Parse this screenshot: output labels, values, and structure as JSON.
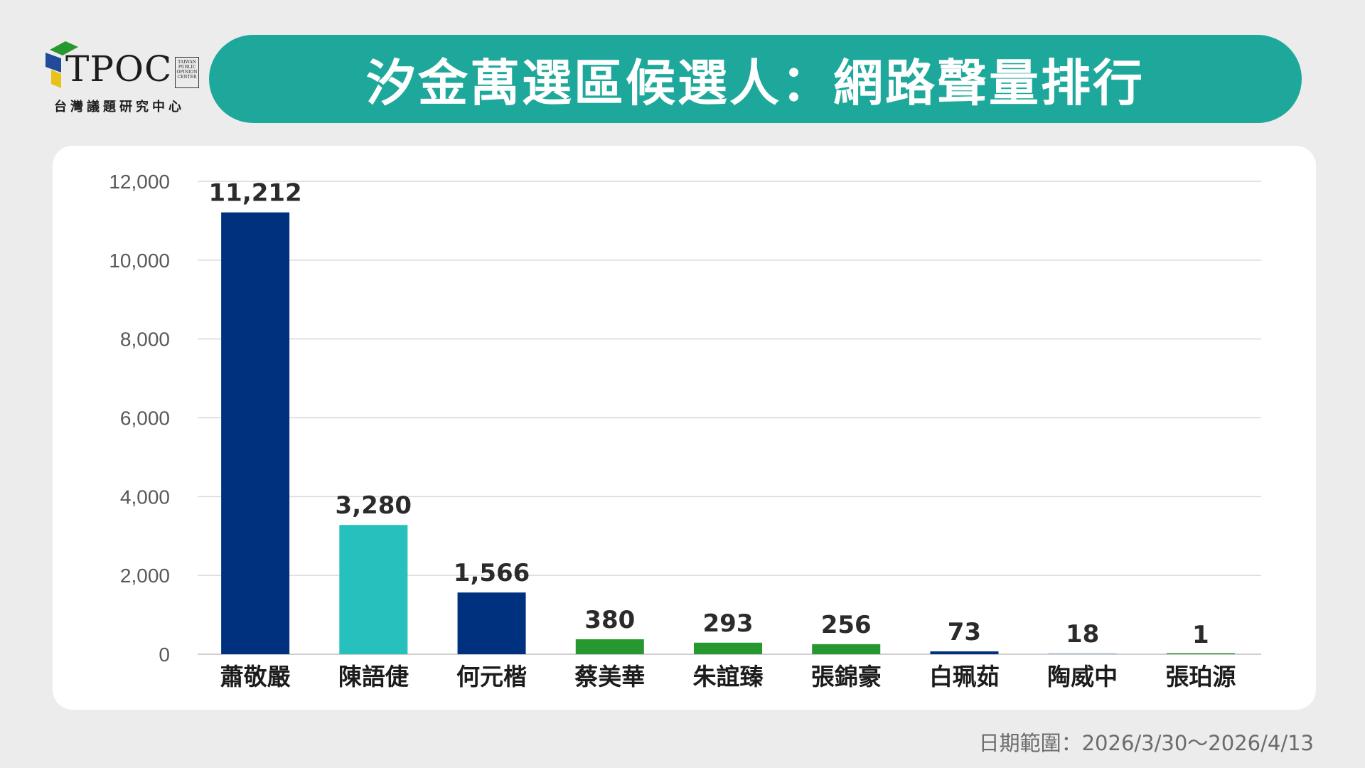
{
  "header": {
    "logo_text": "TPOC",
    "logo_badge_lines": [
      "TAIWAN",
      "PUBLIC",
      "OPINION",
      "CENTER"
    ],
    "logo_subtitle": "台灣議題研究中心",
    "title": "汐金萬選區候選人：網路聲量排行"
  },
  "footer": {
    "date_range": "日期範圍：2026/3/30～2026/4/13"
  },
  "colors": {
    "banner": "#1ea89c",
    "navy": "#00317f",
    "teal": "#26c0bd",
    "green": "#27982f",
    "light_blue": "#aabbdd"
  },
  "chart_data": {
    "type": "bar",
    "title": "",
    "xlabel": "",
    "ylabel": "",
    "ylim": [
      0,
      12000
    ],
    "yticks": [
      "0",
      "2,000",
      "4,000",
      "6,000",
      "8,000",
      "10,000",
      "12,000"
    ],
    "ytick_values": [
      0,
      2000,
      4000,
      6000,
      8000,
      10000,
      12000
    ],
    "grid": true,
    "categories": [
      "蕭敬嚴",
      "陳語倢",
      "何元楷",
      "蔡美華",
      "朱誼臻",
      "張錦豪",
      "白珮茹",
      "陶威中",
      "張珀源"
    ],
    "values": [
      11212,
      3280,
      1566,
      380,
      293,
      256,
      73,
      18,
      1
    ],
    "value_labels": [
      "11,212",
      "3,280",
      "1,566",
      "380",
      "293",
      "256",
      "73",
      "18",
      "1"
    ],
    "bar_colors": [
      "#00317f",
      "#26c0bd",
      "#00317f",
      "#27982f",
      "#27982f",
      "#27982f",
      "#00317f",
      "#aabbdd",
      "#27982f"
    ]
  }
}
